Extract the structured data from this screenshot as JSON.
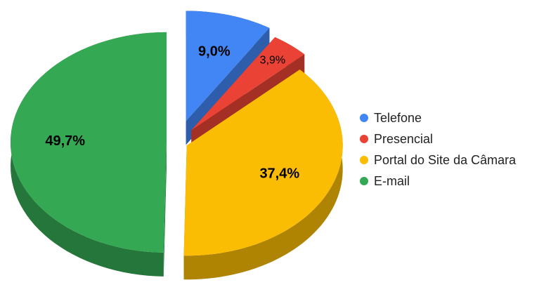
{
  "chart_data": {
    "type": "pie3d",
    "categories": [
      "Telefone",
      "Presencial",
      "Portal do Site da Câmara",
      "E-mail"
    ],
    "values": [
      9.0,
      3.9,
      37.4,
      49.7
    ],
    "value_labels": [
      "9,0%",
      "3,9%",
      "37,4%",
      "49,7%"
    ],
    "colors": [
      "#4285f4",
      "#ea4335",
      "#fbbc04",
      "#34a853"
    ],
    "legend": "right"
  }
}
